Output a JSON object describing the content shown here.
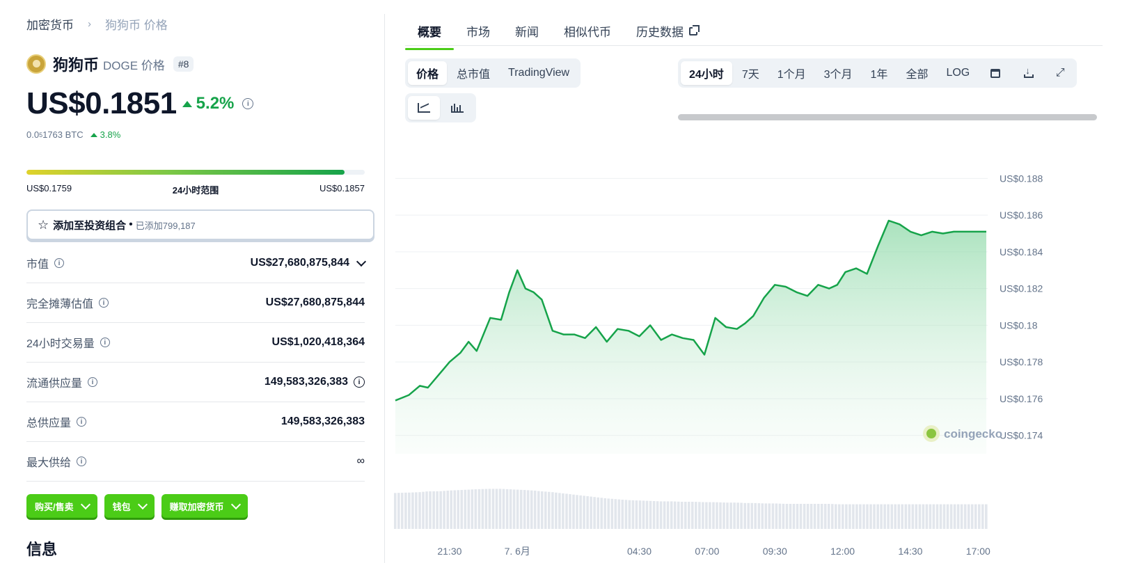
{
  "breadcrumb": {
    "root": "加密货币",
    "separator": "›",
    "current": "狗狗币 价格"
  },
  "coin": {
    "name": "狗狗币",
    "symbol_label": "DOGE 价格",
    "rank": "#8"
  },
  "price": {
    "value": "US$0.1851",
    "change_24h": "5.2%"
  },
  "btc": {
    "prefix": "0.0",
    "sub": "5",
    "rest": "1763 BTC",
    "change": "3.8%"
  },
  "range": {
    "low": "US$0.1759",
    "label": "24小时范围",
    "high": "US$0.1857",
    "position": 0.94
  },
  "portfolio": {
    "label": "添加至投资组合",
    "dot": "•",
    "added": "已添加799,187"
  },
  "stats": [
    {
      "label": "市值",
      "value": "US$27,680,875,844"
    },
    {
      "label": "完全摊薄估值",
      "value": "US$27,680,875,844"
    },
    {
      "label": "24小时交易量",
      "value": "US$1,020,418,364"
    },
    {
      "label": "流通供应量",
      "value": "149,583,326,383"
    },
    {
      "label": "总供应量",
      "value": "149,583,326,383"
    },
    {
      "label": "最大供给",
      "value": "∞"
    }
  ],
  "actions": {
    "buy_sell": "购买/售卖",
    "wallet": "钱包",
    "earn": "赚取加密货币"
  },
  "info_heading": "信息",
  "tabs": [
    "概要",
    "市场",
    "新闻",
    "相似代币",
    "历史数据"
  ],
  "chart_types": [
    "价格",
    "总市值",
    "TradingView"
  ],
  "time_ranges": [
    "24小时",
    "7天",
    "1个月",
    "3个月",
    "1年",
    "全部",
    "LOG"
  ],
  "colors": {
    "accent": "#4bcc17",
    "positive": "#16a34a",
    "line": "#16a34a"
  },
  "watermark": "coingecko",
  "chart_data": {
    "type": "area",
    "title": "",
    "y_ticks": [
      "US$0.188",
      "US$0.186",
      "US$0.184",
      "US$0.182",
      "US$0.18",
      "US$0.178",
      "US$0.176",
      "US$0.174"
    ],
    "ylim": [
      0.173,
      0.189
    ],
    "x_ticks": [
      "21:30",
      "7. 6月",
      "04:30",
      "07:00",
      "09:30",
      "12:00",
      "14:30",
      "17:00"
    ],
    "x_tick_hours": [
      2.0,
      4.5,
      9.0,
      11.5,
      14.0,
      16.5,
      19.0,
      21.5
    ],
    "series": [
      {
        "x_hours": [
          0,
          0.5,
          0.9,
          1.2,
          1.6,
          2.0,
          2.4,
          2.7,
          3.0,
          3.5,
          3.9,
          4.2,
          4.5,
          4.8,
          5.1,
          5.4,
          5.8,
          6.2,
          6.6,
          7.0,
          7.4,
          7.8,
          8.2,
          8.6,
          9.0,
          9.4,
          9.8,
          10.2,
          10.6,
          11.0,
          11.4,
          11.8,
          12.2,
          12.6,
          12.9,
          13.2,
          13.6,
          14.0,
          14.4,
          14.8,
          15.2,
          15.6,
          16.0,
          16.3,
          16.6,
          17.0,
          17.4,
          17.8,
          18.2,
          18.6,
          19.0,
          19.4,
          19.8,
          20.2,
          20.6,
          21.0,
          21.5,
          21.8
        ],
        "values": [
          0.1759,
          0.1762,
          0.1767,
          0.1766,
          0.1773,
          0.178,
          0.1785,
          0.1791,
          0.1786,
          0.1804,
          0.1803,
          0.1818,
          0.183,
          0.182,
          0.1818,
          0.1814,
          0.1797,
          0.1795,
          0.1795,
          0.1793,
          0.1799,
          0.1791,
          0.1798,
          0.1797,
          0.1794,
          0.18,
          0.1792,
          0.1795,
          0.1793,
          0.1792,
          0.1784,
          0.1804,
          0.1799,
          0.1798,
          0.1801,
          0.1805,
          0.1815,
          0.1822,
          0.1821,
          0.1818,
          0.1816,
          0.1822,
          0.182,
          0.1822,
          0.1829,
          0.1831,
          0.1828,
          0.1843,
          0.1857,
          0.1855,
          0.1851,
          0.1849,
          0.1851,
          0.185,
          0.1851,
          0.1851,
          0.1851,
          0.1851
        ],
        "volume": [
          0.86,
          0.87,
          0.88,
          0.9,
          0.9,
          0.92,
          0.93,
          0.94,
          0.95,
          0.96,
          0.96,
          0.95,
          0.94,
          0.93,
          0.92,
          0.9,
          0.88,
          0.85,
          0.82,
          0.79,
          0.76,
          0.73,
          0.71,
          0.69,
          0.68,
          0.67,
          0.66,
          0.66,
          0.65,
          0.65,
          0.64,
          0.64,
          0.63,
          0.63,
          0.62,
          0.62,
          0.61,
          0.61,
          0.6,
          0.6,
          0.6,
          0.6,
          0.6,
          0.59,
          0.59,
          0.59,
          0.59,
          0.59,
          0.59,
          0.59,
          0.59,
          0.59,
          0.59,
          0.59,
          0.59,
          0.59,
          0.59,
          0.59
        ]
      }
    ],
    "grid": true,
    "legend": "none"
  }
}
